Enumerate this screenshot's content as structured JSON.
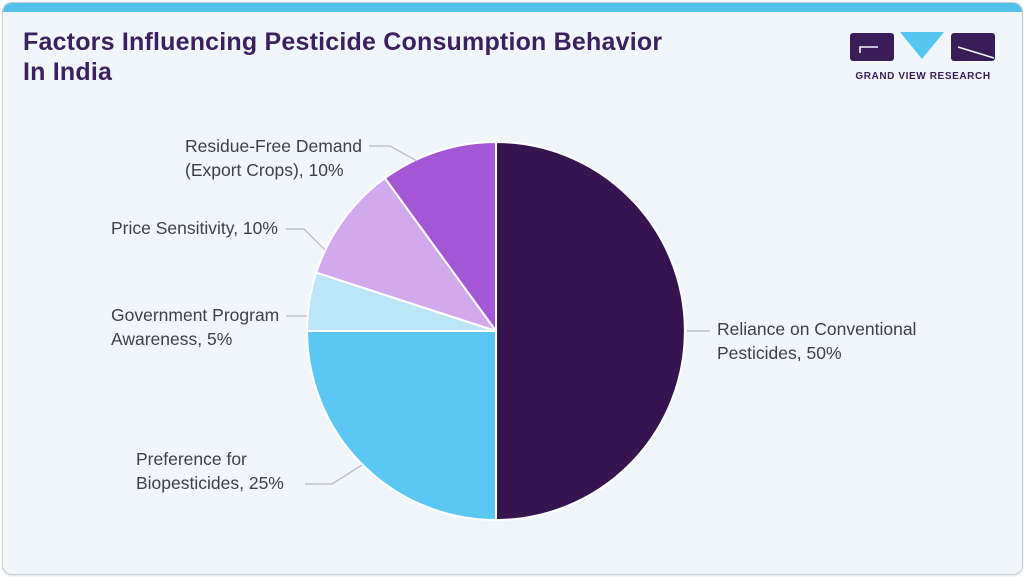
{
  "header": {
    "title": "Factors Influencing Pesticide Consumption Behavior In India"
  },
  "brand": {
    "name": "GRAND VIEW RESEARCH"
  },
  "theme": {
    "accent_bar_blue": "#54c0ec",
    "title_purple": "#3c205f",
    "card_background": "#f0f6fa",
    "label_text": "#3f404a",
    "leader_line_gray": "#b3bac1",
    "logo_purple": "#3a1d58",
    "logo_blue": "#56c5f0"
  },
  "chart_data": {
    "type": "pie",
    "title": "Factors Influencing Pesticide Consumption Behavior In India",
    "start_angle": "12 o'clock",
    "direction": "clockwise",
    "legend_position": "callout labels with leader lines",
    "unit": "%",
    "slices": [
      {
        "label": "Reliance on Conventional Pesticides",
        "value": 50,
        "color": "#361450",
        "callout": "Reliance on Conventional Pesticides, 50%"
      },
      {
        "label": "Preference for Biopesticides",
        "value": 25,
        "color": "#5bc8f4",
        "callout": "Preference for Biopesticides, 25%"
      },
      {
        "label": "Government Program Awareness",
        "value": 5,
        "color": "#bde5f8",
        "callout": "Government Program Awareness, 5%"
      },
      {
        "label": "Price Sensitivity",
        "value": 10,
        "color": "#d3a9ee",
        "callout": "Price Sensitivity, 10%"
      },
      {
        "label": "Residue-Free Demand (Export Crops)",
        "value": 10,
        "color": "#a457d5",
        "callout": "Residue-Free Demand (Export Crops), 10%"
      }
    ]
  }
}
